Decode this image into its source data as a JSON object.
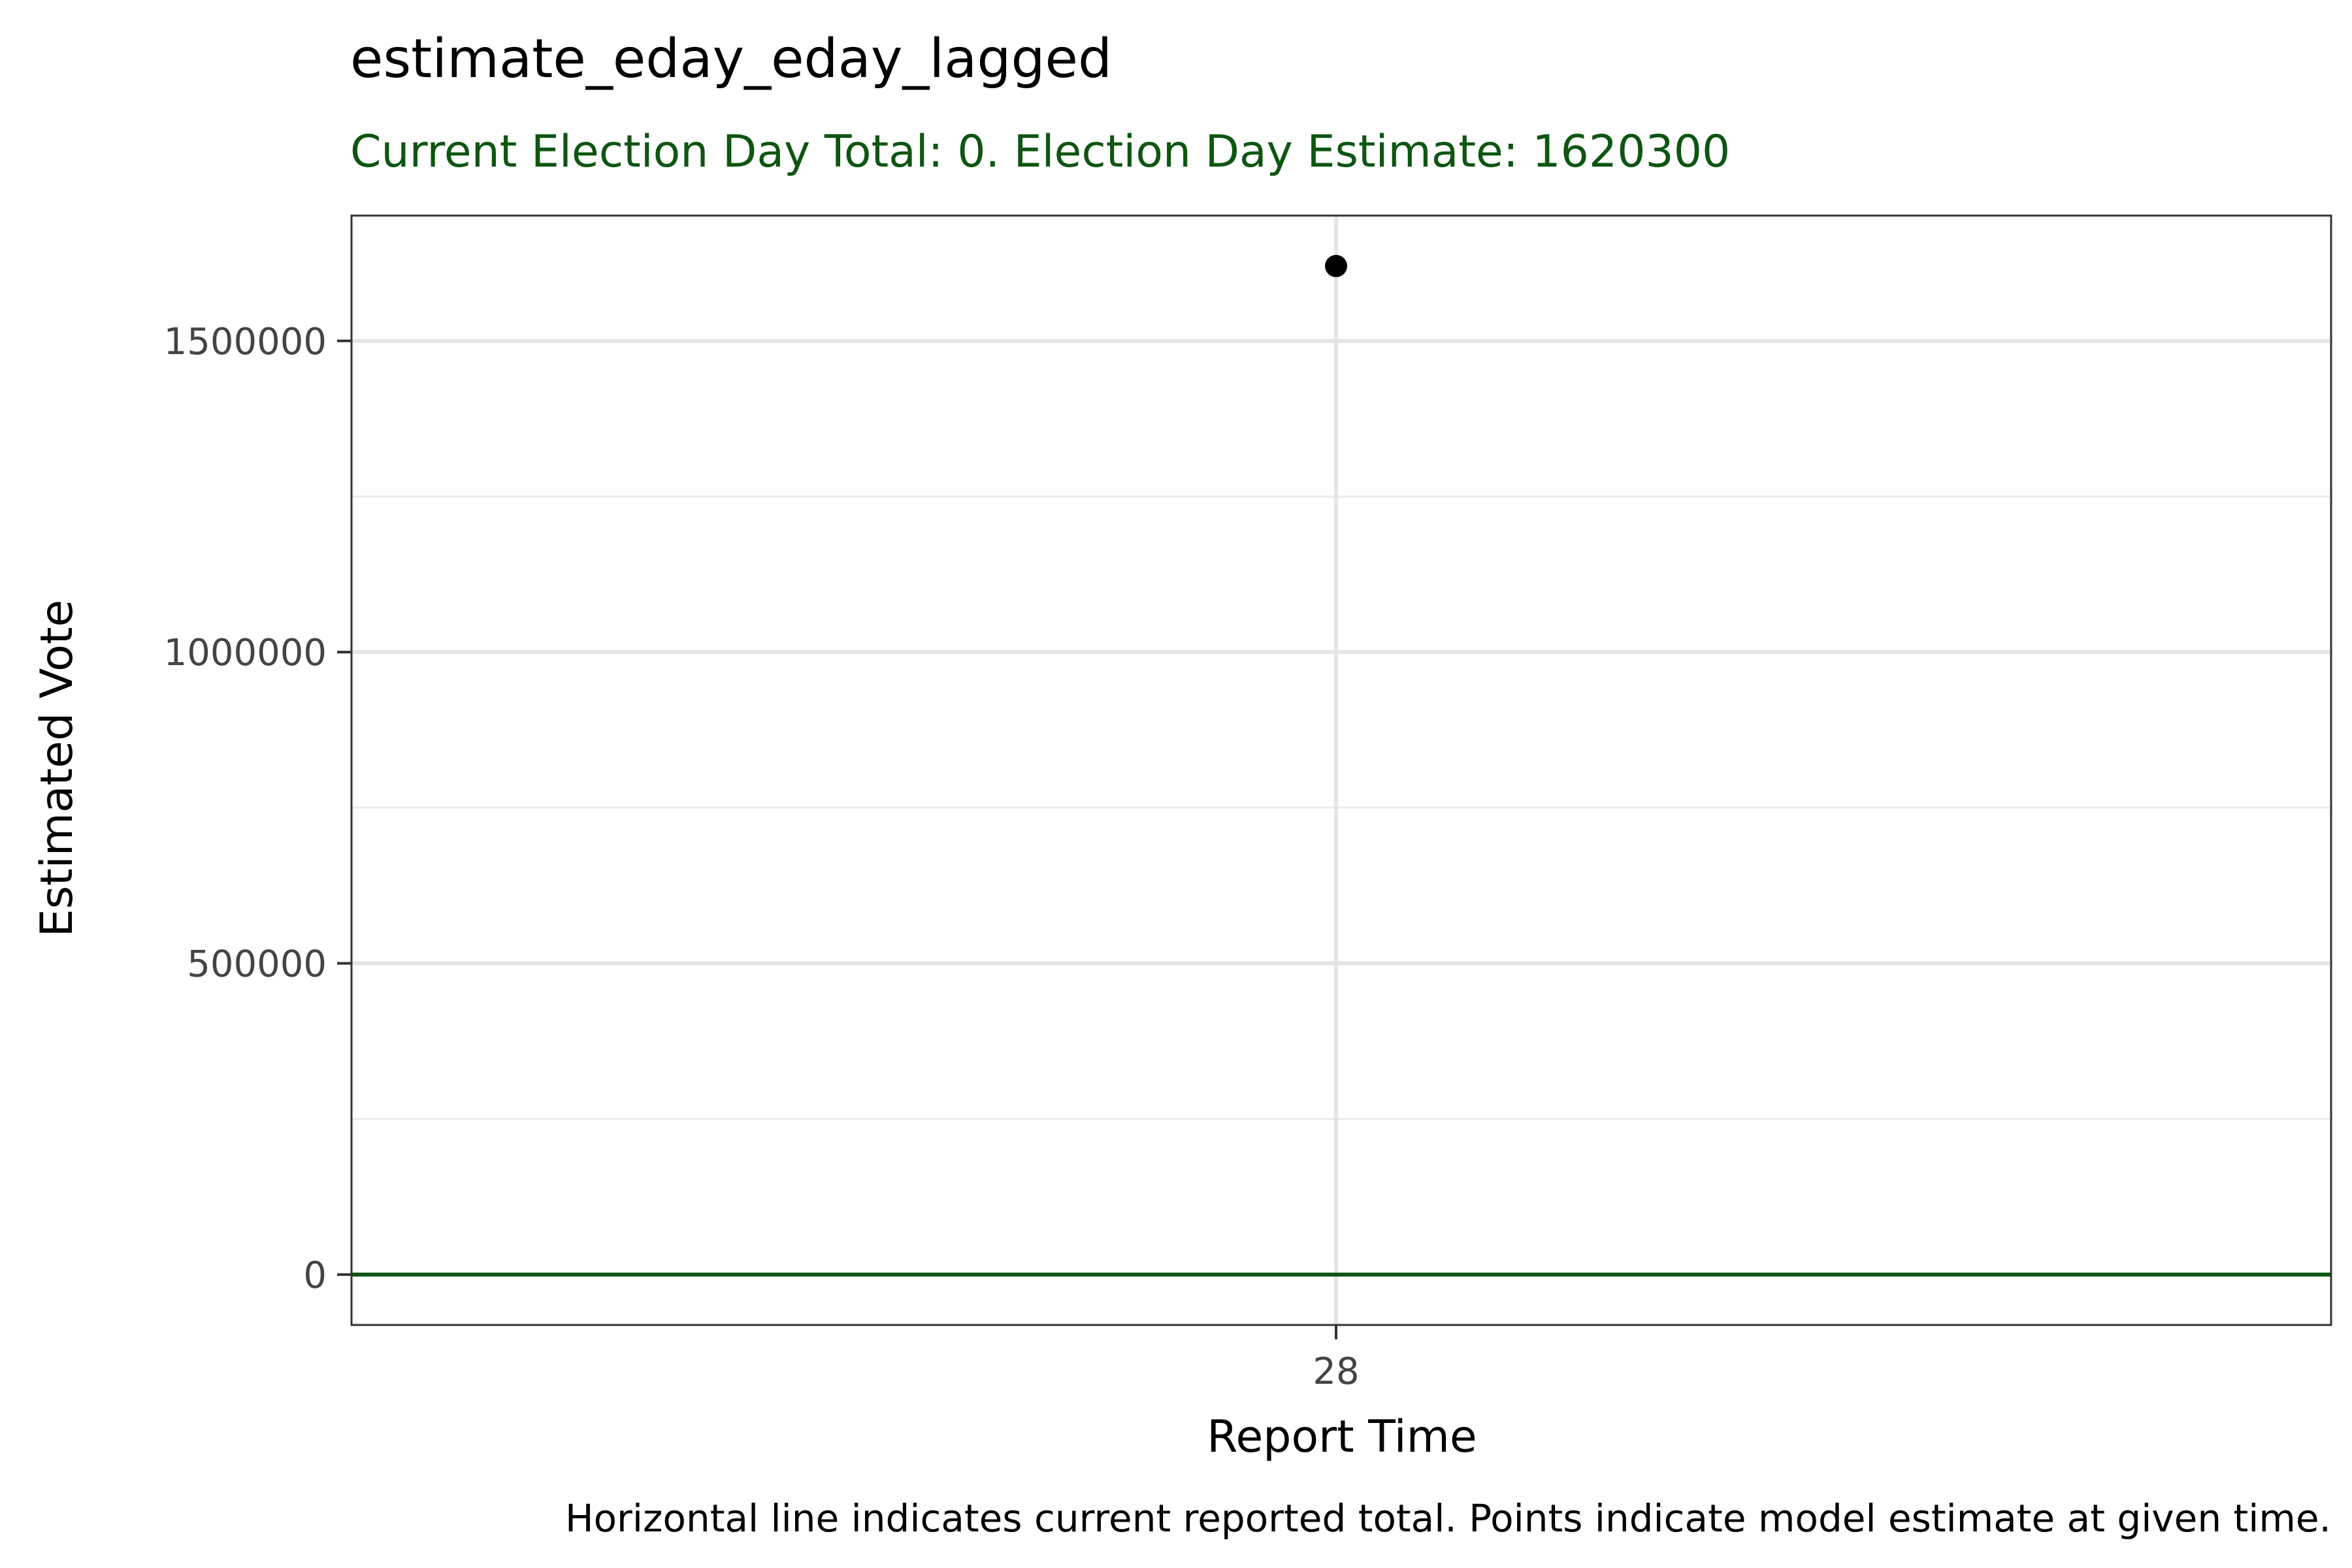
{
  "chart_data": {
    "type": "scatter",
    "title": "estimate_eday_eday_lagged",
    "subtitle": "Current Election Day Total: 0. Election Day Estimate: 1620300",
    "xlabel": "Report Time",
    "ylabel": "Estimated Vote",
    "caption": "Horizontal line indicates current reported total. Points indicate model estimate at given time.",
    "x_categories": [
      "28"
    ],
    "points": [
      {
        "x": "28",
        "y": 1620300
      }
    ],
    "reference_line": {
      "y": 0,
      "color": "#0e5512"
    },
    "y_ticks": [
      0,
      500000,
      1000000,
      1500000
    ],
    "y_tick_labels": [
      "0",
      "500000",
      "1000000",
      "1500000"
    ],
    "ylim": [
      -81015,
      1701315
    ],
    "grid": true,
    "point_color": "#000000"
  }
}
